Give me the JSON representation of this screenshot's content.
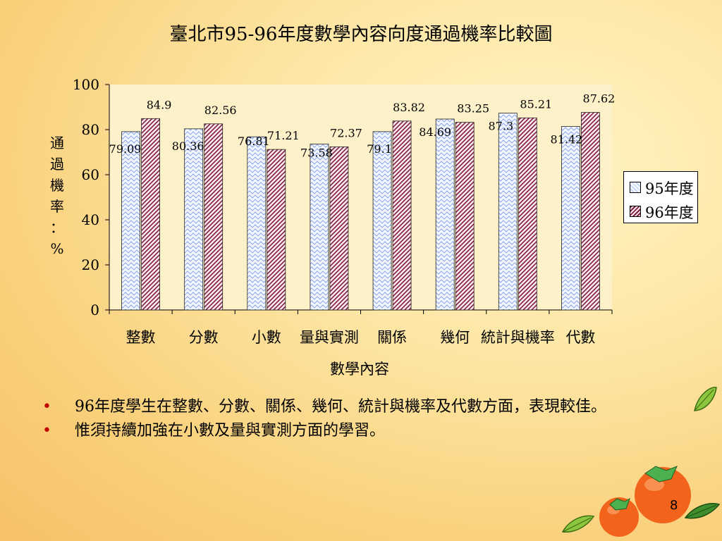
{
  "slide": {
    "page_number": "8",
    "bullets": [
      "96年度學生在整數、分數、關係、幾何、統計與機率及代數方面，表現較佳。",
      "惟須持續加強在小數及量與實測方面的學習。"
    ]
  },
  "chart_data": {
    "type": "bar",
    "title": "臺北市95-96年度數學內容向度通過機率比較圖",
    "xlabel": "數學內容",
    "ylabel": "通過機率：%",
    "ylabel_chars": [
      "通",
      "過",
      "機",
      "率",
      "：",
      "%"
    ],
    "ylim": [
      0,
      100
    ],
    "yticks": [
      0,
      20,
      40,
      60,
      80,
      100
    ],
    "categories": [
      "整數",
      "分數",
      "小數",
      "量與實測",
      "關係",
      "幾何",
      "統計與機率",
      "代數"
    ],
    "series": [
      {
        "name": "95年度",
        "values": [
          79.09,
          80.36,
          76.81,
          73.58,
          79.1,
          84.69,
          87.3,
          81.42
        ],
        "labels": [
          "79.09",
          "80.36",
          "76.81",
          "73.58",
          "79.1",
          "84.69",
          "87.3",
          "81.42"
        ]
      },
      {
        "name": "96年度",
        "values": [
          84.9,
          82.56,
          71.21,
          72.37,
          83.82,
          83.25,
          85.21,
          87.62
        ],
        "labels": [
          "84.9",
          "82.56",
          "71.21",
          "72.37",
          "83.82",
          "83.25",
          "85.21",
          "87.62"
        ]
      }
    ],
    "grid": false,
    "legend": "right",
    "colors": {
      "series1_bg": "#f3f6ff",
      "series1_line": "#8aa6e8",
      "series2_bg": "#ffe8f0",
      "series2_line": "#7a1f3d"
    }
  }
}
